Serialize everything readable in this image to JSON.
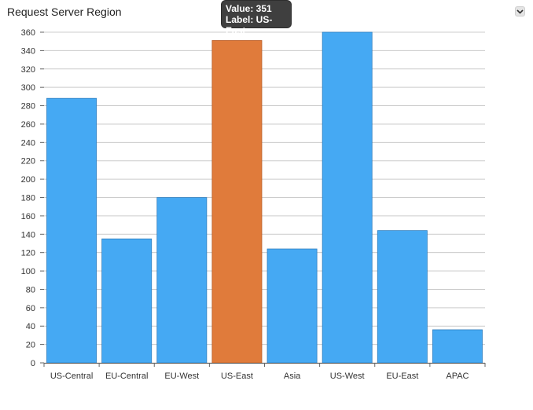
{
  "header": {
    "title": "Request Server Region",
    "menu_icon": "chevron-down-icon"
  },
  "tooltip": {
    "value_text": "Value: 351",
    "label_text": "Label: US-East"
  },
  "colors": {
    "bar": "#45a9f3",
    "bar_highlight": "#e07b3b",
    "grid": "#cccccc",
    "axis": "#666666"
  },
  "chart_data": {
    "type": "bar",
    "title": "Request Server Region",
    "xlabel": "",
    "ylabel": "",
    "categories": [
      "US-Central",
      "EU-Central",
      "EU-West",
      "US-East",
      "Asia",
      "US-West",
      "EU-East",
      "APAC"
    ],
    "values": [
      288,
      135,
      180,
      351,
      124,
      360,
      144,
      36
    ],
    "highlighted_category": "US-East",
    "ylim": [
      0,
      360
    ],
    "yticks": [
      0,
      20,
      40,
      60,
      80,
      100,
      120,
      140,
      160,
      180,
      200,
      220,
      240,
      260,
      280,
      300,
      320,
      340,
      360
    ],
    "grid": true,
    "legend": "none"
  }
}
